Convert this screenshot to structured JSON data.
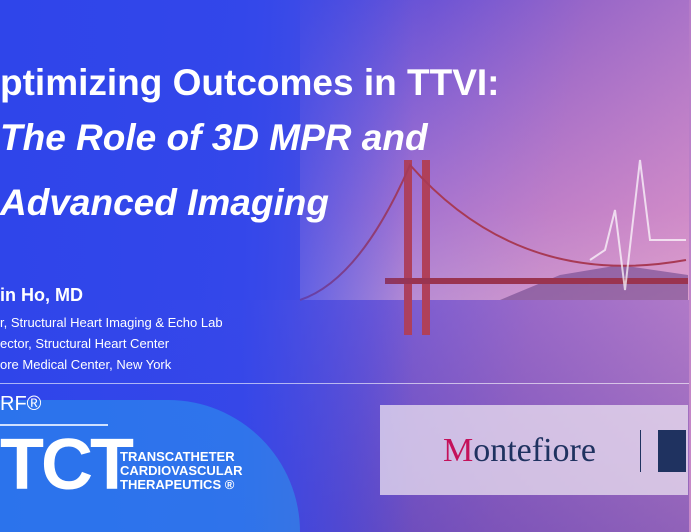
{
  "slide": {
    "title_lines": [
      "ptimizing Outcomes in TTVI:",
      "The Role of 3D MPR and",
      "Advanced Imaging"
    ],
    "presenter": {
      "name": "in Ho, MD",
      "affiliations": [
        "r, Structural Heart Imaging & Echo Lab",
        "ector, Structural Heart Center",
        "ore Medical Center, New York"
      ]
    },
    "branding": {
      "crf": "RF®",
      "tct": "TCT",
      "tct_sub": [
        "TRANSCATHETER",
        "CARDIOVASCULAR",
        "THERAPEUTICS ®"
      ],
      "partner_logo": "Montefiore",
      "partner_logo_color": "#1f3260",
      "partner_logo_accent": "#c4115a"
    }
  }
}
